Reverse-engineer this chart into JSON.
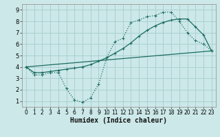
{
  "xlabel": "Humidex (Indice chaleur)",
  "background_color": "#cce8e8",
  "grid_color": "#aad0d0",
  "line_color": "#1a6b60",
  "xlim": [
    -0.5,
    23.5
  ],
  "ylim": [
    0.5,
    9.5
  ],
  "xticks": [
    0,
    1,
    2,
    3,
    4,
    5,
    6,
    7,
    8,
    9,
    10,
    11,
    12,
    13,
    14,
    15,
    16,
    17,
    18,
    19,
    20,
    21,
    22,
    23
  ],
  "yticks": [
    1,
    2,
    3,
    4,
    5,
    6,
    7,
    8,
    9
  ],
  "line1_x": [
    0,
    1,
    2,
    3,
    4,
    5,
    6,
    7,
    8,
    9,
    10,
    11,
    12,
    13,
    14,
    15,
    16,
    17,
    18,
    19,
    20,
    21,
    22,
    23
  ],
  "line1_y": [
    4.0,
    3.3,
    3.3,
    3.5,
    3.5,
    2.1,
    1.1,
    0.9,
    1.3,
    2.5,
    4.8,
    6.2,
    6.5,
    7.9,
    8.1,
    8.4,
    8.5,
    8.8,
    8.8,
    8.0,
    7.0,
    6.3,
    6.0,
    5.4
  ],
  "line2_x": [
    0,
    1,
    2,
    3,
    4,
    5,
    6,
    7,
    8,
    9,
    10,
    11,
    12,
    13,
    14,
    15,
    16,
    17,
    18,
    19,
    20,
    21,
    22,
    23
  ],
  "line2_y": [
    4.0,
    3.5,
    3.5,
    3.6,
    3.7,
    3.8,
    3.9,
    4.0,
    4.2,
    4.5,
    4.8,
    5.2,
    5.6,
    6.1,
    6.7,
    7.2,
    7.6,
    7.9,
    8.1,
    8.2,
    8.2,
    7.5,
    6.8,
    5.4
  ],
  "line3_x": [
    0,
    23
  ],
  "line3_y": [
    4.0,
    5.4
  ],
  "xlabel_fontsize": 7,
  "tick_fontsize": 5.5
}
